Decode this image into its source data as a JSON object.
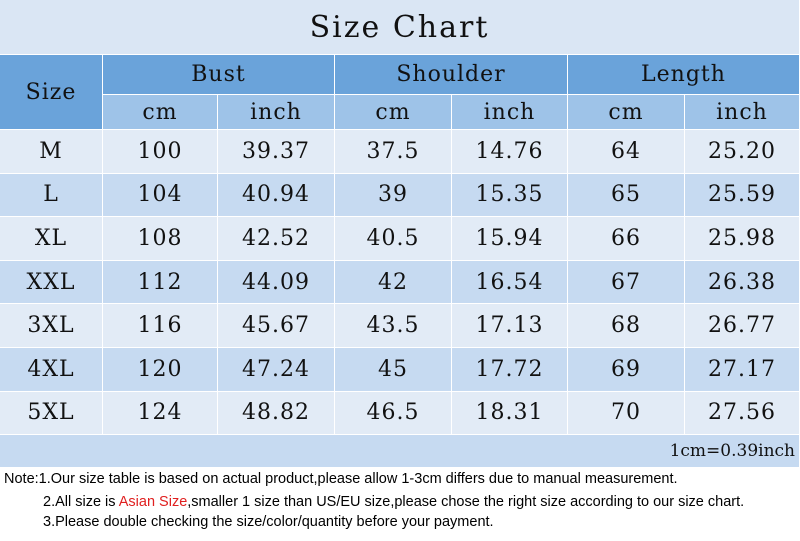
{
  "title": "Size Chart",
  "table": {
    "size_header": "Size",
    "groups": [
      "Bust",
      "Shoulder",
      "Length"
    ],
    "units": [
      "cm",
      "inch",
      "cm",
      "inch",
      "cm",
      "inch"
    ],
    "rows": [
      [
        "M",
        "100",
        "39.37",
        "37.5",
        "14.76",
        "64",
        "25.20"
      ],
      [
        "L",
        "104",
        "40.94",
        "39",
        "15.35",
        "65",
        "25.59"
      ],
      [
        "XL",
        "108",
        "42.52",
        "40.5",
        "15.94",
        "66",
        "25.98"
      ],
      [
        "XXL",
        "112",
        "44.09",
        "42",
        "16.54",
        "67",
        "26.38"
      ],
      [
        "3XL",
        "116",
        "45.67",
        "43.5",
        "17.13",
        "68",
        "26.77"
      ],
      [
        "4XL",
        "120",
        "47.24",
        "45",
        "17.72",
        "69",
        "27.17"
      ],
      [
        "5XL",
        "124",
        "48.82",
        "46.5",
        "18.31",
        "70",
        "27.56"
      ]
    ],
    "conversion": "1cm=0.39inch"
  },
  "notes": {
    "line1": "Note:1.Our size table is based on actual product,please allow 1-3cm differs due to manual measurement.",
    "line2_start": "2.All size is ",
    "line2_highlight": "Asian Size",
    "line2_end": ",smaller 1 size than US/EU size,please chose the right size according to our size chart.",
    "line3": "3.Please double checking the size/color/quantity before your payment."
  }
}
